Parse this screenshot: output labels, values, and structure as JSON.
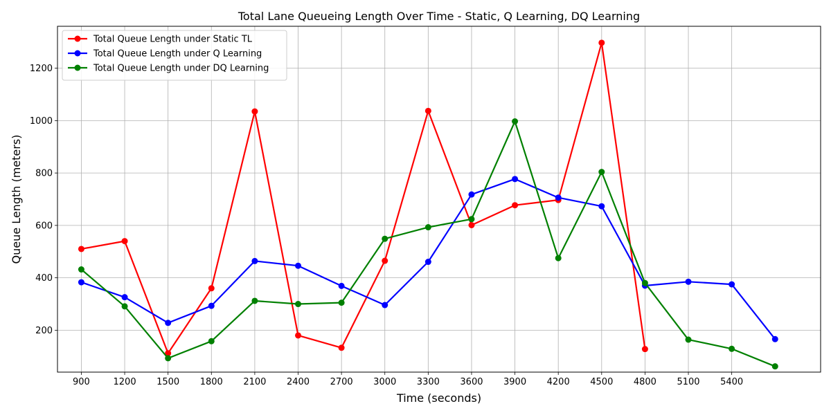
{
  "chart_data": {
    "type": "line",
    "title": "Total Lane Queueing Length Over Time - Static, Q Learning, DQ Learning",
    "xlabel": "Time (seconds)",
    "ylabel": "Queue Length (meters)",
    "x_ticks": [
      900,
      1200,
      1500,
      1800,
      2100,
      2400,
      2700,
      3000,
      3300,
      3600,
      3900,
      4200,
      4500,
      4800,
      5100,
      5400
    ],
    "y_ticks": [
      200,
      400,
      600,
      800,
      1000,
      1200
    ],
    "xlim": [
      735,
      6015
    ],
    "ylim": [
      40,
      1360
    ],
    "grid": true,
    "legend_position": "top-left",
    "series": [
      {
        "name": "Total Queue Length under Static TL",
        "color": "#ff0000",
        "x": [
          900,
          1200,
          1500,
          1800,
          2100,
          2400,
          2700,
          3000,
          3300,
          3600,
          3900,
          4200,
          4500,
          4800
        ],
        "y": [
          510,
          540,
          112,
          360,
          1035,
          180,
          133,
          465,
          1037,
          601,
          677,
          697,
          1297,
          128
        ]
      },
      {
        "name": "Total Queue Length under Q Learning",
        "color": "#0000ff",
        "x": [
          900,
          1200,
          1500,
          1800,
          2100,
          2400,
          2700,
          3000,
          3300,
          3600,
          3900,
          4200,
          4500,
          4800,
          5100,
          5400,
          5700
        ],
        "y": [
          383,
          326,
          228,
          293,
          464,
          446,
          369,
          296,
          461,
          718,
          777,
          706,
          673,
          370,
          385,
          375,
          166
        ]
      },
      {
        "name": "Total Queue Length under DQ Learning",
        "color": "#008000",
        "x": [
          900,
          1200,
          1500,
          1800,
          2100,
          2400,
          2700,
          3000,
          3300,
          3600,
          3900,
          4200,
          4500,
          4800,
          5100,
          5400,
          5700
        ],
        "y": [
          432,
          291,
          93,
          158,
          312,
          300,
          305,
          549,
          593,
          624,
          997,
          475,
          804,
          380,
          164,
          129,
          62
        ]
      }
    ]
  }
}
